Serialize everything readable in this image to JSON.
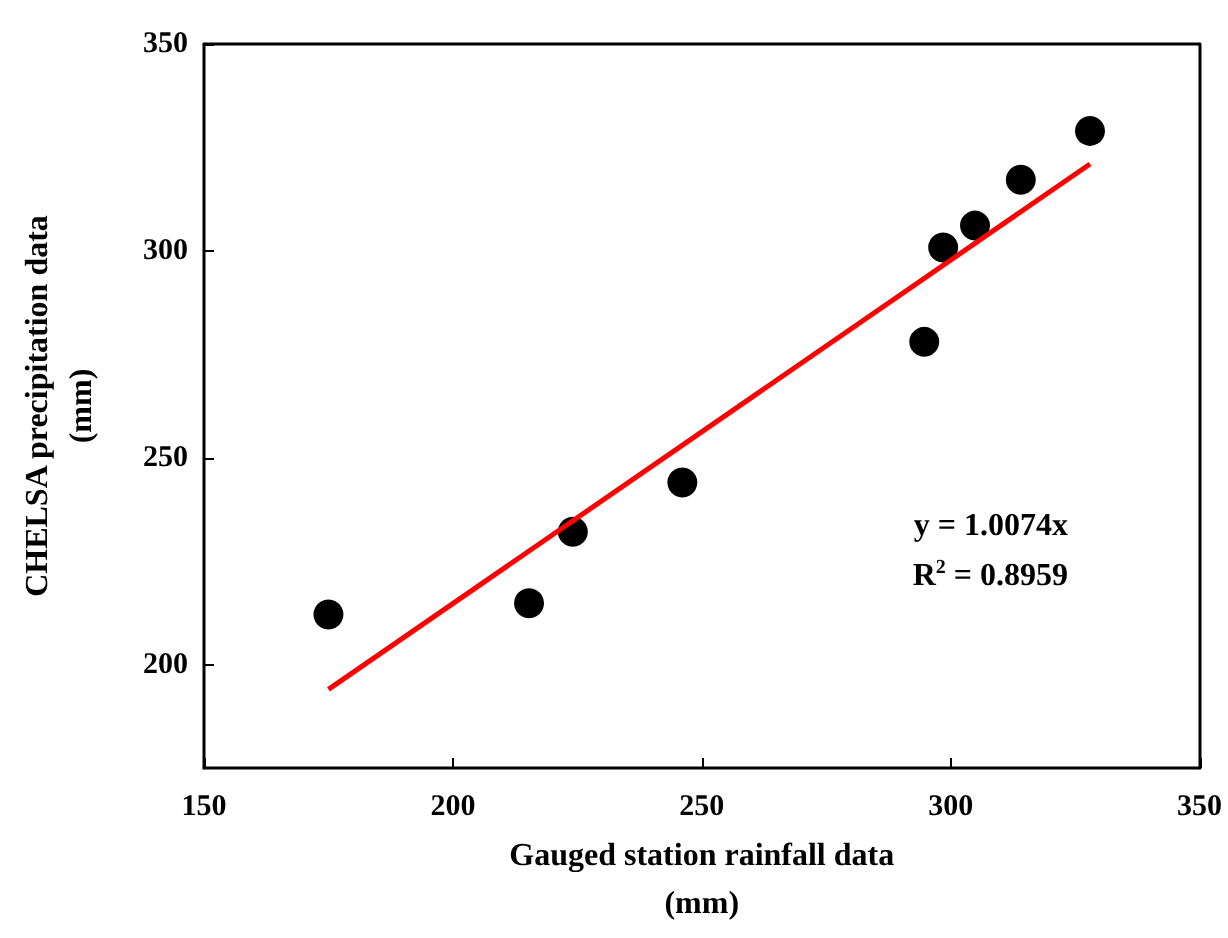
{
  "chart_data": {
    "type": "scatter",
    "xlabel": "Gauged station rainfall data\n(mm)",
    "ylabel": "CHELSA precipitation data\n(mm)",
    "x": [
      175,
      215.3,
      224.1,
      246.1,
      294.7,
      298.5,
      304.9,
      314.1,
      328
    ],
    "series": [
      {
        "color": "#000000",
        "marker": "circle",
        "values": [
          212.1,
          214.8,
          232.1,
          244,
          278,
          300.8,
          306.1,
          317.2,
          329
        ]
      },
      {
        "type": "line",
        "marker": "none",
        "color": "#ff0000",
        "x": [
          175,
          328
        ],
        "values": [
          194,
          321
        ]
      }
    ],
    "xlim": [
      150,
      350
    ],
    "xticks": [
      150,
      200,
      250,
      300,
      350
    ],
    "ylim": [
      175,
      350
    ],
    "yticks": [
      200,
      250,
      300,
      350
    ],
    "annotations": [
      "y = 1.0074x",
      "R$^{2}$ = 0.8959"
    ],
    "grid": false
  }
}
